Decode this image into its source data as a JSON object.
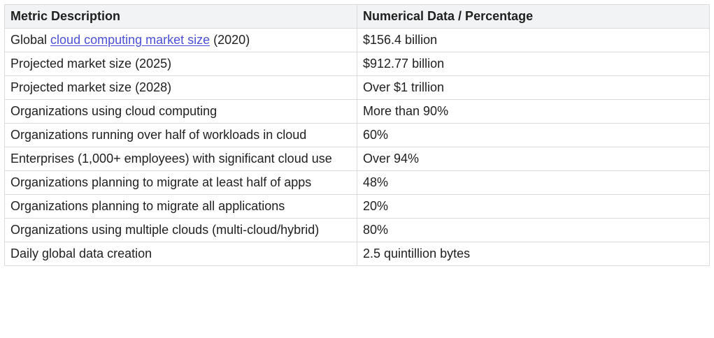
{
  "table": {
    "headers": [
      "Metric Description",
      "Numerical Data / Percentage"
    ],
    "rows": [
      {
        "metric": {
          "prefix": "Global ",
          "link": "cloud computing market size",
          "suffix": " (2020)"
        },
        "value": "$156.4 billion"
      },
      {
        "metric": {
          "text": "Projected market size (2025)"
        },
        "value": "$912.77 billion"
      },
      {
        "metric": {
          "text": "Projected market size (2028)"
        },
        "value": "Over $1 trillion"
      },
      {
        "metric": {
          "text": "Organizations using cloud computing"
        },
        "value": "More than 90%"
      },
      {
        "metric": {
          "text": "Organizations running over half of workloads in cloud"
        },
        "value": "60%"
      },
      {
        "metric": {
          "text": "Enterprises (1,000+ employees) with significant cloud use"
        },
        "value": "Over 94%"
      },
      {
        "metric": {
          "text": "Organizations planning to migrate at least half of apps"
        },
        "value": "48%"
      },
      {
        "metric": {
          "text": "Organizations planning to migrate all applications"
        },
        "value": "20%"
      },
      {
        "metric": {
          "text": "Organizations using multiple clouds (multi-cloud/hybrid)"
        },
        "value": "80%"
      },
      {
        "metric": {
          "text": "Daily global data creation"
        },
        "value": "2.5 quintillion bytes"
      }
    ]
  },
  "colors": {
    "header_bg": "#f1f3f4",
    "border": "#dadce0",
    "link": "#4b4fd6",
    "text": "#1f1f1f"
  }
}
